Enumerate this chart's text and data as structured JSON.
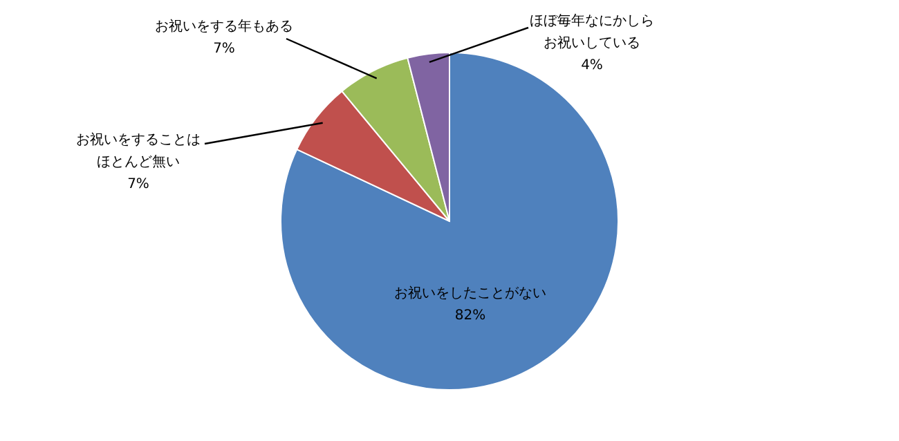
{
  "chart_data": {
    "type": "pie",
    "categories": [
      "お祝いをしたことがない",
      "お祝いをすることはほとんど無い",
      "お祝いをする年もある",
      "ほぼ毎年なにかしらお祝いしている"
    ],
    "values": [
      82,
      7,
      7,
      4
    ],
    "colors": [
      "#4f81bd",
      "#c0504d",
      "#9bbb59",
      "#8064a2"
    ],
    "value_labels": [
      "82%",
      "7%",
      "7%",
      "4%"
    ]
  }
}
